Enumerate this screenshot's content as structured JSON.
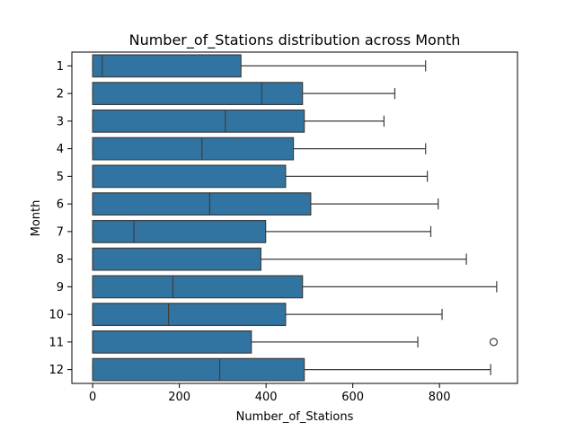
{
  "chart_data": {
    "type": "boxplot",
    "orientation": "horizontal",
    "title": "Number_of_Stations distribution across Month",
    "xlabel": "Number_of_Stations",
    "ylabel": "Month",
    "xlim": [
      -48,
      980
    ],
    "xticks": [
      0,
      200,
      400,
      600,
      800
    ],
    "grid": false,
    "legend": "none",
    "box_color": "#3274a1",
    "line_color": "#3d3d3d",
    "categories": [
      "1",
      "2",
      "3",
      "4",
      "5",
      "6",
      "7",
      "8",
      "9",
      "10",
      "11",
      "12"
    ],
    "boxes": [
      {
        "q1": 0,
        "median": 22,
        "q3": 342,
        "whisker_low": 0,
        "whisker_high": 768,
        "outliers": []
      },
      {
        "q1": 0,
        "median": 390,
        "q3": 484,
        "whisker_low": 0,
        "whisker_high": 697,
        "outliers": []
      },
      {
        "q1": 0,
        "median": 306,
        "q3": 488,
        "whisker_low": 0,
        "whisker_high": 672,
        "outliers": []
      },
      {
        "q1": 0,
        "median": 252,
        "q3": 463,
        "whisker_low": 0,
        "whisker_high": 768,
        "outliers": []
      },
      {
        "q1": 0,
        "median": 0,
        "q3": 445,
        "whisker_low": 0,
        "whisker_high": 772,
        "outliers": []
      },
      {
        "q1": 0,
        "median": 270,
        "q3": 503,
        "whisker_low": 0,
        "whisker_high": 797,
        "outliers": []
      },
      {
        "q1": 0,
        "median": 95,
        "q3": 399,
        "whisker_low": 0,
        "whisker_high": 780,
        "outliers": []
      },
      {
        "q1": 0,
        "median": 0,
        "q3": 388,
        "whisker_low": 0,
        "whisker_high": 862,
        "outliers": []
      },
      {
        "q1": 0,
        "median": 185,
        "q3": 484,
        "whisker_low": 0,
        "whisker_high": 932,
        "outliers": []
      },
      {
        "q1": 0,
        "median": 175,
        "q3": 445,
        "whisker_low": 0,
        "whisker_high": 806,
        "outliers": []
      },
      {
        "q1": 0,
        "median": 0,
        "q3": 366,
        "whisker_low": 0,
        "whisker_high": 750,
        "outliers": [
          925
        ]
      },
      {
        "q1": 0,
        "median": 293,
        "q3": 488,
        "whisker_low": 0,
        "whisker_high": 918,
        "outliers": []
      }
    ]
  }
}
